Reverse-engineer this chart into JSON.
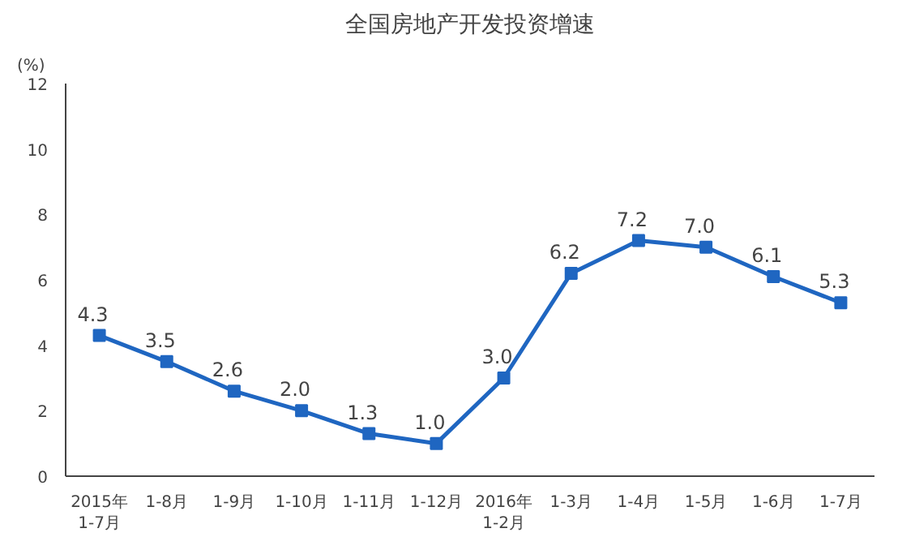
{
  "chart_data": {
    "type": "line",
    "title": "全国房地产开发投资增速",
    "ylabel": "(%)",
    "categories": [
      "2015年\n1-7月",
      "1-8月",
      "1-9月",
      "1-10月",
      "1-11月",
      "1-12月",
      "2016年\n1-2月",
      "1-3月",
      "1-4月",
      "1-5月",
      "1-6月",
      "1-7月"
    ],
    "series": [
      {
        "color": "#1f66c1",
        "values": [
          4.3,
          3.5,
          2.6,
          2.0,
          1.3,
          1.0,
          3.0,
          6.2,
          7.2,
          7.0,
          6.1,
          5.3
        ],
        "value_labels": [
          "4.3",
          "3.5",
          "2.6",
          "2.0",
          "1.3",
          "1.0",
          "3.0",
          "6.2",
          "7.2",
          "7.0",
          "6.1",
          "5.3"
        ]
      }
    ],
    "ylim": [
      0,
      12
    ],
    "yticks": [
      0,
      2,
      4,
      6,
      8,
      10,
      12
    ],
    "marker": "square",
    "line_style": "solid",
    "grid": false
  }
}
